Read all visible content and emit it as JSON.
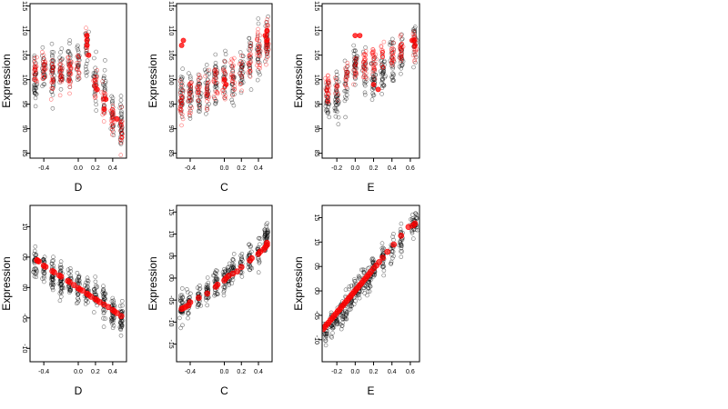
{
  "figure": {
    "background": "#ffffff",
    "point_colors": {
      "black": "#000000",
      "red": "#ff0000"
    }
  },
  "chart_data": [
    {
      "type": "scatter",
      "panel": "top-left",
      "xlabel": "D",
      "ylabel": "Expression",
      "xlim": [
        -0.56,
        0.56
      ],
      "ylim": [
        8.4,
        11.55
      ],
      "xticks": [
        -0.4,
        0.0,
        0.2,
        0.4
      ],
      "xtick_labels": [
        "-0.4",
        "0.0",
        "0.2",
        "0.4"
      ],
      "yticks": [
        8.5,
        9.0,
        9.5,
        10.0,
        10.5,
        11.0,
        11.5
      ],
      "ytick_labels": [
        "85",
        "90",
        "95",
        "100",
        "105",
        "110",
        "115"
      ],
      "x_groups": [
        -0.5,
        -0.4,
        -0.3,
        -0.2,
        -0.1,
        0.0,
        0.1,
        0.2,
        0.3,
        0.4,
        0.5
      ],
      "black_points": {
        "count": 300,
        "y_center": [
          10.0,
          10.2,
          10.1,
          10.2,
          10.3,
          10.4,
          10.6,
          10.0,
          9.8,
          9.3,
          9.1
        ],
        "y_spread": 0.85
      },
      "red_points": {
        "count": 240,
        "y_center": [
          10.1,
          10.2,
          10.0,
          10.1,
          10.2,
          10.3,
          10.7,
          9.9,
          9.6,
          9.2,
          9.0
        ],
        "y_spread": 0.6
      },
      "red_highlight": {
        "x": [
          0.1,
          0.1,
          0.12,
          0.1,
          0.22,
          0.3,
          0.32,
          0.45
        ],
        "y": [
          10.9,
          10.7,
          10.5,
          10.8,
          9.8,
          9.4,
          9.6,
          9.2
        ]
      }
    },
    {
      "type": "scatter",
      "panel": "top-middle",
      "xlabel": "C",
      "ylabel": "Expression",
      "xlim": [
        -0.56,
        0.56
      ],
      "ylim": [
        8.4,
        11.55
      ],
      "xticks": [
        -0.4,
        0.0,
        0.2,
        0.4
      ],
      "xtick_labels": [
        "-0.4",
        "0.0",
        "0.2",
        "0.4"
      ],
      "yticks": [
        8.5,
        9.0,
        9.5,
        10.0,
        10.5,
        11.0,
        11.5
      ],
      "ytick_labels": [
        "85",
        "90",
        "95",
        "100",
        "105",
        "110",
        "115"
      ],
      "x_groups": [
        -0.5,
        -0.4,
        -0.3,
        -0.2,
        -0.1,
        0.0,
        0.1,
        0.2,
        0.3,
        0.4,
        0.5
      ],
      "black_points": {
        "count": 300,
        "y_center": [
          9.7,
          9.7,
          9.8,
          9.8,
          9.9,
          10.0,
          10.0,
          10.2,
          10.4,
          10.6,
          10.8
        ],
        "y_spread": 0.85
      },
      "red_points": {
        "count": 240,
        "y_center": [
          9.5,
          9.6,
          9.7,
          9.8,
          9.9,
          10.0,
          10.1,
          10.2,
          10.4,
          10.6,
          10.8
        ],
        "y_spread": 0.7
      },
      "red_highlight": {
        "x": [
          -0.5,
          -0.48,
          0.0,
          0.02,
          0.48,
          0.5,
          0.5
        ],
        "y": [
          10.7,
          10.8,
          10.0,
          9.9,
          10.9,
          10.8,
          11.0
        ]
      }
    },
    {
      "type": "scatter",
      "panel": "top-right",
      "xlabel": "E",
      "ylabel": "Expression",
      "xlim": [
        -0.36,
        0.7
      ],
      "ylim": [
        8.4,
        11.55
      ],
      "xticks": [
        -0.2,
        0.0,
        0.2,
        0.4,
        0.6
      ],
      "xtick_labels": [
        "-0.2",
        "0.0",
        "0.2",
        "0.4",
        "0.6"
      ],
      "yticks": [
        8.5,
        9.0,
        9.5,
        10.0,
        10.5,
        11.0,
        11.5
      ],
      "ytick_labels": [
        "85",
        "90",
        "95",
        "100",
        "105",
        "110",
        "115"
      ],
      "x_groups": [
        -0.3,
        -0.2,
        -0.1,
        0.0,
        0.1,
        0.2,
        0.3,
        0.4,
        0.5,
        0.65
      ],
      "black_points": {
        "count": 300,
        "y_center": [
          9.6,
          9.6,
          9.9,
          10.3,
          10.2,
          10.0,
          10.2,
          10.4,
          10.5,
          10.8
        ],
        "y_spread": 0.8
      },
      "red_points": {
        "count": 220,
        "y_center": [
          9.8,
          9.9,
          10.0,
          10.2,
          10.3,
          10.4,
          10.5,
          10.5,
          10.6,
          10.7
        ],
        "y_spread": 0.55
      },
      "red_highlight": {
        "x": [
          0.0,
          0.05,
          0.2,
          0.25,
          0.62,
          0.65,
          0.64
        ],
        "y": [
          10.9,
          10.9,
          9.9,
          9.8,
          10.8,
          10.7,
          10.8
        ]
      }
    },
    {
      "type": "scatter",
      "panel": "bottom-left",
      "xlabel": "D",
      "ylabel": "Expression",
      "xlim": [
        -0.56,
        0.56
      ],
      "ylim": [
        -1.22,
        1.35
      ],
      "xticks": [
        -0.4,
        0.0,
        0.2,
        0.4
      ],
      "xtick_labels": [
        "-0.4",
        "0.0",
        "0.2",
        "0.4"
      ],
      "yticks": [
        -1.0,
        -0.5,
        0.0,
        0.5,
        1.0
      ],
      "ytick_labels": [
        "-10",
        "-05",
        "00",
        "05",
        "10"
      ],
      "x_groups": [
        -0.5,
        -0.4,
        -0.3,
        -0.2,
        -0.1,
        0.0,
        0.1,
        0.2,
        0.3,
        0.4,
        0.5
      ],
      "black_points": {
        "count": 360,
        "y_center": [
          0.4,
          0.3,
          0.2,
          0.1,
          0.05,
          0.0,
          -0.05,
          -0.15,
          -0.25,
          -0.4,
          -0.5
        ],
        "y_spread": 0.45
      },
      "fit_points": {
        "x": [
          -0.48,
          -0.47,
          -0.46,
          -0.4,
          -0.38,
          -0.3,
          -0.28,
          -0.22,
          -0.2,
          -0.12,
          -0.1,
          -0.05,
          0.0,
          0.02,
          0.05,
          0.1,
          0.12,
          0.15,
          0.2,
          0.22,
          0.25,
          0.3,
          0.35,
          0.4,
          0.42,
          0.45,
          0.5
        ],
        "y": [
          0.45,
          0.44,
          0.43,
          0.36,
          0.34,
          0.27,
          0.25,
          0.2,
          0.18,
          0.11,
          0.09,
          0.04,
          -0.01,
          -0.03,
          -0.05,
          -0.1,
          -0.12,
          -0.15,
          -0.19,
          -0.21,
          -0.24,
          -0.28,
          -0.32,
          -0.37,
          -0.39,
          -0.42,
          -0.47
        ]
      }
    },
    {
      "type": "scatter",
      "panel": "bottom-middle",
      "xlabel": "C",
      "ylabel": "Expression",
      "xlim": [
        -0.56,
        0.56
      ],
      "ylim": [
        -1.9,
        1.65
      ],
      "xticks": [
        -0.4,
        0.0,
        0.2,
        0.4
      ],
      "xtick_labels": [
        "-0.4",
        "0.0",
        "0.2",
        "0.4"
      ],
      "yticks": [
        -1.5,
        -1.0,
        -0.5,
        0.0,
        0.5,
        1.0,
        1.5
      ],
      "ytick_labels": [
        "-15",
        "-10",
        "-05",
        "00",
        "05",
        "10",
        "15"
      ],
      "x_groups": [
        -0.5,
        -0.42,
        -0.3,
        -0.2,
        -0.1,
        0.0,
        0.05,
        0.1,
        0.2,
        0.3,
        0.4,
        0.48,
        0.5
      ],
      "black_points": {
        "count": 360,
        "y_center": [
          -0.65,
          -0.55,
          -0.45,
          -0.35,
          -0.15,
          -0.05,
          0.05,
          0.15,
          0.3,
          0.45,
          0.6,
          0.8,
          1.0
        ],
        "y_spread": 0.55
      },
      "fit_points": {
        "x": [
          -0.5,
          -0.48,
          -0.45,
          -0.42,
          -0.4,
          -0.3,
          -0.2,
          -0.1,
          -0.08,
          0.0,
          0.02,
          0.05,
          0.1,
          0.15,
          0.2,
          0.3,
          0.32,
          0.4,
          0.42,
          0.46,
          0.48,
          0.5,
          0.5
        ],
        "y": [
          -0.7,
          -0.68,
          -0.65,
          -0.62,
          -0.55,
          -0.45,
          -0.35,
          -0.2,
          -0.15,
          -0.05,
          0.0,
          0.05,
          0.1,
          0.15,
          0.25,
          0.4,
          0.45,
          0.55,
          0.6,
          0.65,
          0.7,
          0.75,
          0.8
        ]
      }
    },
    {
      "type": "scatter",
      "panel": "bottom-right",
      "xlabel": "E",
      "ylabel": "Expression",
      "xlim": [
        -0.36,
        0.7
      ],
      "ylim": [
        -1.45,
        1.75
      ],
      "xticks": [
        -0.2,
        0.0,
        0.2,
        0.4,
        0.6
      ],
      "xtick_labels": [
        "-0.2",
        "0.0",
        "0.2",
        "0.4",
        "0.6"
      ],
      "yticks": [
        -1.0,
        -0.5,
        0.0,
        0.5,
        1.0,
        1.5
      ],
      "ytick_labels": [
        "-10",
        "-05",
        "00",
        "05",
        "10",
        "15"
      ],
      "x_groups": [
        -0.32,
        -0.25,
        -0.2,
        -0.15,
        -0.1,
        -0.05,
        0.0,
        0.05,
        0.1,
        0.15,
        0.2,
        0.3,
        0.4,
        0.5,
        0.62,
        0.66
      ],
      "black_points": {
        "count": 380,
        "y_center": [
          -0.85,
          -0.7,
          -0.55,
          -0.45,
          -0.35,
          -0.2,
          -0.05,
          0.1,
          0.2,
          0.3,
          0.45,
          0.65,
          0.85,
          1.05,
          1.3,
          1.4
        ],
        "y_spread": 0.5
      },
      "fit_points": {
        "x": [
          -0.35,
          -0.33,
          -0.31,
          -0.29,
          -0.27,
          -0.25,
          -0.23,
          -0.21,
          -0.19,
          -0.17,
          -0.15,
          -0.13,
          -0.11,
          -0.09,
          -0.07,
          -0.05,
          -0.03,
          -0.01,
          0.01,
          0.03,
          0.05,
          0.07,
          0.09,
          0.11,
          0.13,
          0.15,
          0.17,
          0.2,
          0.23,
          0.26,
          0.3,
          0.35,
          0.42,
          0.5,
          0.58,
          0.63,
          0.65
        ],
        "y": [
          -0.78,
          -0.74,
          -0.69,
          -0.65,
          -0.6,
          -0.56,
          -0.51,
          -0.47,
          -0.42,
          -0.38,
          -0.33,
          -0.29,
          -0.24,
          -0.2,
          -0.15,
          -0.11,
          -0.06,
          -0.02,
          0.03,
          0.07,
          0.12,
          0.16,
          0.21,
          0.25,
          0.3,
          0.34,
          0.39,
          0.46,
          0.52,
          0.59,
          0.68,
          0.8,
          0.95,
          1.13,
          1.31,
          1.34,
          1.38
        ]
      }
    }
  ]
}
